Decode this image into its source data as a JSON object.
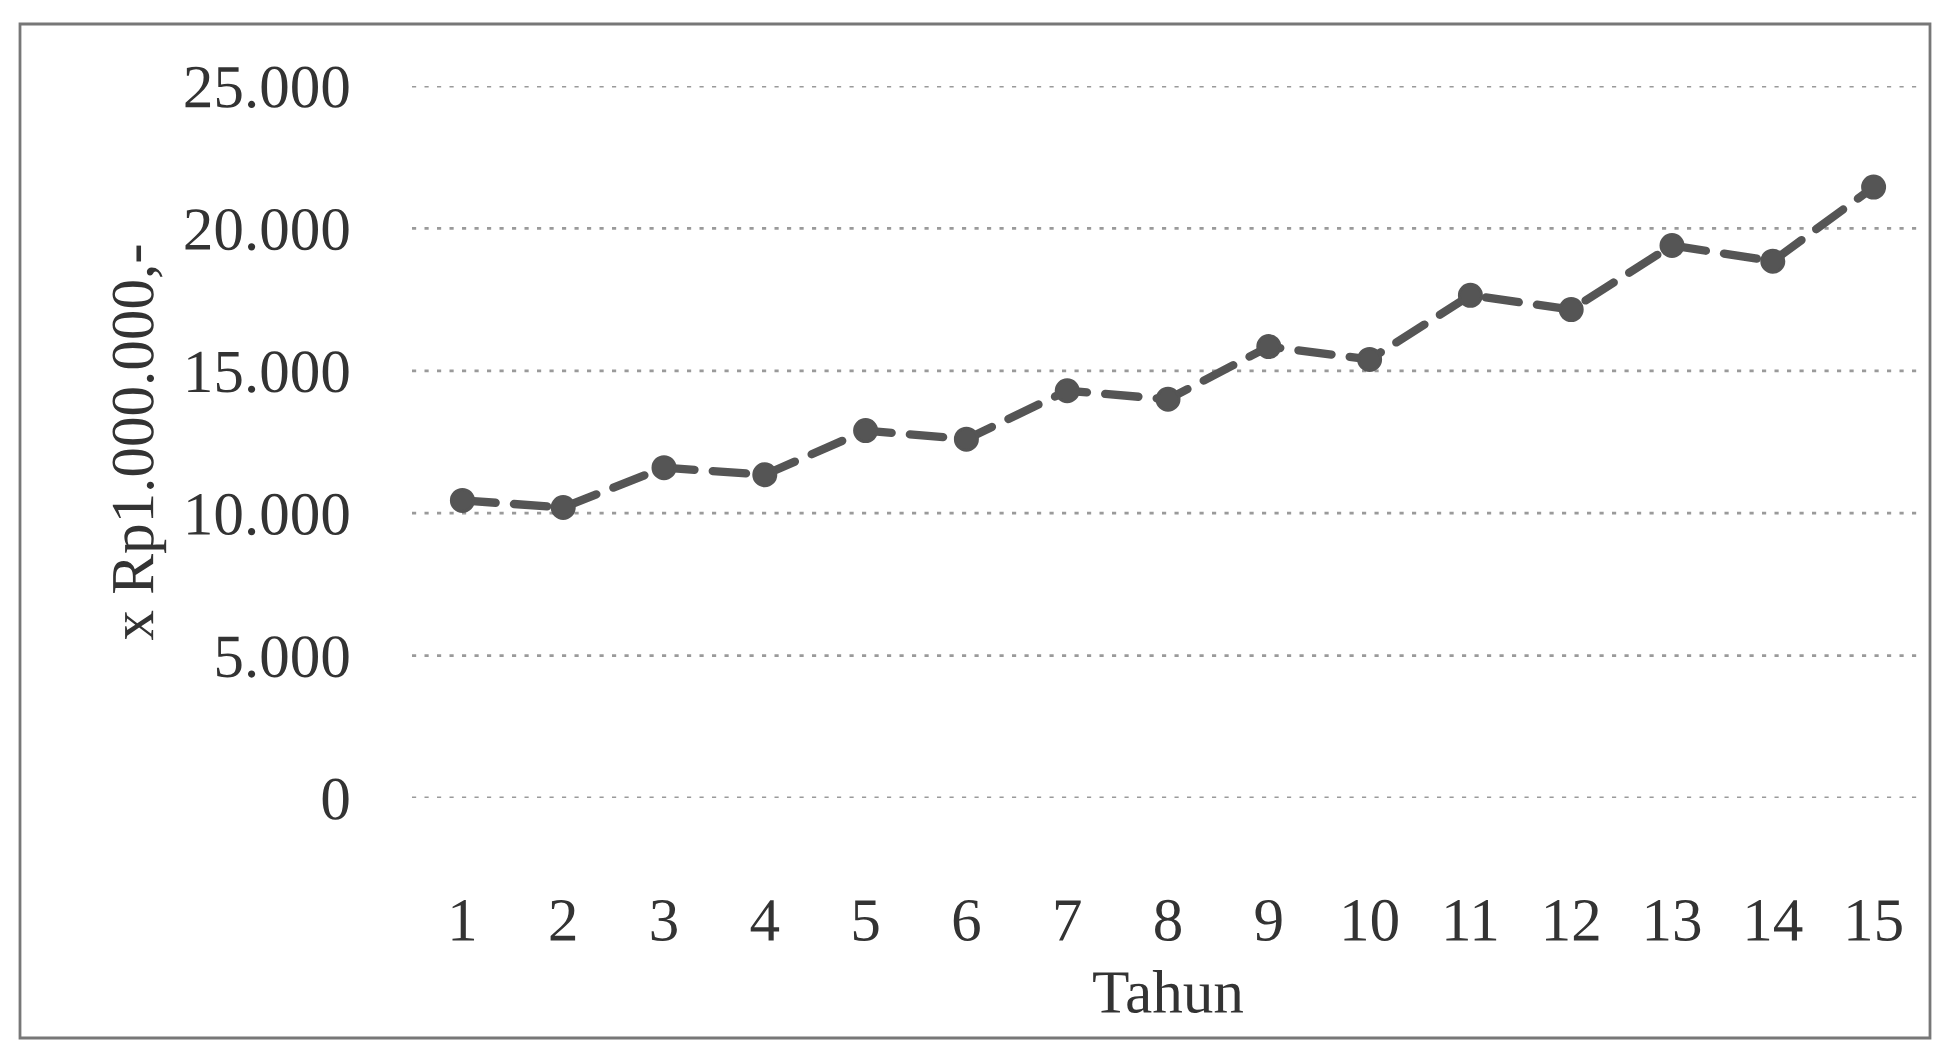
{
  "chart_data": {
    "type": "line",
    "xlabel": "Tahun",
    "ylabel": "x Rp1.000.000,-",
    "categories": [
      "1",
      "2",
      "3",
      "4",
      "5",
      "6",
      "7",
      "8",
      "9",
      "10",
      "11",
      "12",
      "13",
      "14",
      "15"
    ],
    "series": [
      {
        "color": "#555555",
        "values": [
          10450,
          10200,
          11600,
          11350,
          12900,
          12600,
          14300,
          14000,
          15850,
          15400,
          17650,
          17150,
          19400,
          18850,
          21450
        ]
      }
    ],
    "ylim": [
      0,
      25000
    ],
    "yticks": [
      0,
      {
        "value": 5000,
        "label": "5.000"
      },
      {
        "value": 10000,
        "label": "10.000"
      },
      {
        "value": 15000,
        "label": "15.000"
      },
      {
        "value": 20000,
        "label": "20.000"
      },
      {
        "value": 25000,
        "label": "25.000"
      }
    ],
    "grid": "y",
    "marker": "circle",
    "line_style": "dashed"
  }
}
